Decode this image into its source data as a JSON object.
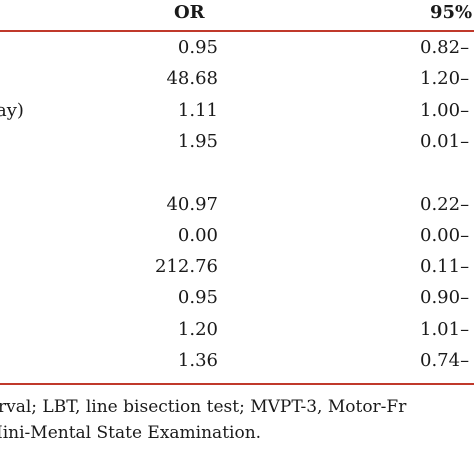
{
  "table": {
    "headers": {
      "or": "OR",
      "ci": "95%"
    },
    "rows": [
      {
        "label": "",
        "or": "0.95",
        "ci": "0.82–"
      },
      {
        "label": "",
        "or": "48.68",
        "ci": "1.20–"
      },
      {
        "label": "ay)",
        "or": "1.11",
        "ci": "1.00–"
      },
      {
        "label": "",
        "or": "1.95",
        "ci": "0.01–"
      },
      {
        "label": "",
        "or": "",
        "ci": ""
      },
      {
        "label": "",
        "or": "40.97",
        "ci": "0.22–"
      },
      {
        "label": "",
        "or": "0.00",
        "ci": "0.00–"
      },
      {
        "label": "",
        "or": "212.76",
        "ci": "0.11–"
      },
      {
        "label": "",
        "or": "0.95",
        "ci": "0.90–"
      },
      {
        "label": "",
        "or": "1.20",
        "ci": "1.01–"
      },
      {
        "label": "",
        "or": "1.36",
        "ci": "0.74–"
      }
    ]
  },
  "footnote": {
    "line1": "rval; LBT, line bisection test; MVPT-3, Motor-Fr",
    "line2": "Iini-Mental State Examination."
  },
  "colors": {
    "rule": "#c0392b",
    "text": "#1a1a1a"
  }
}
